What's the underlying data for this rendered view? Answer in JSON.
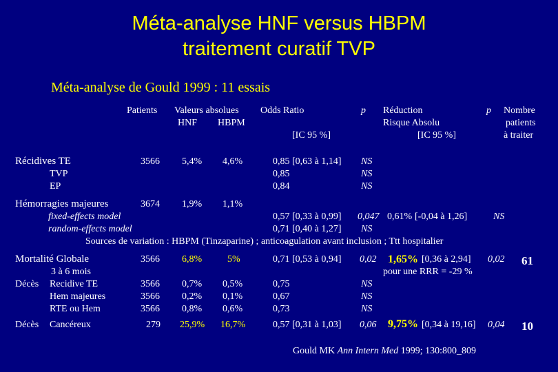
{
  "title": {
    "line1": "Méta-analyse HNF versus HBPM",
    "line2": "traitement curatif TVP"
  },
  "subtitle": "Méta-analyse de Gould 1999 : 11 essais",
  "headers": {
    "patients": "Patients",
    "valeurs": "Valeurs absolues",
    "hnf": "HNF",
    "hbpm": "HBPM",
    "odds_ratio": "Odds Ratio",
    "ic95": "[IC 95 %]",
    "p": "p",
    "reduction": "Réduction",
    "risque_absolu": "Risque Absolu",
    "ic95_2": "[IC 95 %]",
    "p2": "p",
    "nombre": "Nombre",
    "patients2": "patients",
    "a_traiter": "à traiter"
  },
  "recidives": {
    "label": "Récidives TE",
    "patients": "3566",
    "hnf": "5,4%",
    "hbpm": "4,6%",
    "or": "0,85",
    "ic": "[0,63 à 1,14]",
    "p": "NS",
    "tvp": {
      "label": "TVP",
      "or": "0,85",
      "p": "NS"
    },
    "ep": {
      "label": "EP",
      "or": "0,84",
      "p": "NS"
    }
  },
  "hemorragies": {
    "label": "Hémorragies majeures",
    "patients": "3674",
    "hnf": "1,9%",
    "hbpm": "1,1%",
    "fixed": {
      "label": "fixed-effects model",
      "or": "0,57",
      "ic": "[0,33 à 0,99]",
      "p": "0,047",
      "rra": "0,61%",
      "rra_ic": "[-0,04 à 1,26]",
      "p2": "NS"
    },
    "random": {
      "label": "random-effects model",
      "or": "0,71",
      "ic": "[0,40 à 1,27]",
      "p": "NS"
    },
    "sources": "Sources de variation : HBPM (Tinzaparine) ; anticoagulation avant inclusion ; Ttt hospitalier"
  },
  "mortalite": {
    "label": "Mortalité Globale",
    "sub": "3 à 6 mois",
    "patients": "3566",
    "hnf": "6,8%",
    "hbpm": "5%",
    "or": "0,71",
    "ic": "[0,53 à 0,94]",
    "p": "0,02",
    "rra": "1,65%",
    "rra_ic": "[0,36 à 2,94]",
    "p2": "0,02",
    "nnt": "61",
    "rrr": "pour une RRR = -29 %"
  },
  "deces_label": "Décès",
  "deces_rows": [
    {
      "label": "Recidive TE",
      "patients": "3566",
      "hnf": "0,7%",
      "hbpm": "0,5%",
      "or": "0,75",
      "p": "NS"
    },
    {
      "label": "Hem majeures",
      "patients": "3566",
      "hnf": "0,2%",
      "hbpm": "0,1%",
      "or": "0,67",
      "p": "NS"
    },
    {
      "label": "RTE ou Hem",
      "patients": "3566",
      "hnf": "0,8%",
      "hbpm": "0,6%",
      "or": "0,73",
      "p": "NS"
    }
  ],
  "cancereux": {
    "prefix": "Décès",
    "label": "Cancéreux",
    "patients": "279",
    "hnf": "25,9%",
    "hbpm": "16,7%",
    "or": "0,57",
    "ic": "[0,31 à 1,03]",
    "p": "0,06",
    "rra": "9,75%",
    "rra_ic": "[0,34 à 19,16]",
    "p2": "0,04",
    "nnt": "10"
  },
  "reference": {
    "authors": "Gould MK",
    "journal": "Ann Intern Med",
    "details": "1999; 130:800_809"
  }
}
